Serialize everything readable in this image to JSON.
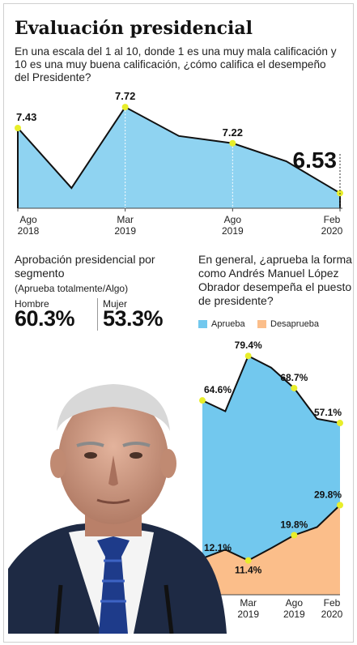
{
  "title": "Evaluación presidencial",
  "subtitle": "En una escala del 1 al 10, donde 1 es una muy mala calificación y 10 es una muy buena calificación, ¿cómo califica el desempeño del Presidente?",
  "colors": {
    "line_fill": "#8fd3f1",
    "approve": "#72c8ee",
    "disapprove": "#fbbe8a",
    "marker": "#e8ee2a"
  },
  "segment": {
    "title": "Aprobación presidencial por segmento",
    "subtitle": "(Aprueba totalmente/Algo)",
    "hombre_label": "Hombre",
    "hombre_value": "60.3%",
    "mujer_label": "Mujer",
    "mujer_value": "53.3%"
  },
  "approval_question": "En general, ¿aprueba la forma como Andrés Manuel López Obrador desempeña el puesto de presidente?",
  "legend": {
    "approve": "Aprueba",
    "disapprove": "Desaprueba"
  },
  "chart_data": [
    {
      "type": "area",
      "title": "Evaluación presidencial",
      "x": [
        "Ago 2018",
        "Nov 2018",
        "Mar 2019",
        "May 2019",
        "Ago 2019",
        "Nov 2019",
        "Feb 2020"
      ],
      "values": [
        7.43,
        6.6,
        7.72,
        7.32,
        7.22,
        6.97,
        6.53
      ],
      "point_labels": [
        "7.43",
        "",
        "7.72",
        "",
        "7.22",
        "",
        "6.53"
      ],
      "tick_labels": [
        {
          "month": "Ago",
          "year": "2018"
        },
        {
          "month": "Mar",
          "year": "2019"
        },
        {
          "month": "Ago",
          "year": "2019"
        },
        {
          "month": "Feb",
          "year": "2020"
        }
      ],
      "ylim": [
        6.5,
        7.8
      ]
    },
    {
      "type": "area",
      "x": [
        "Ago 2018",
        "Nov 2018",
        "Mar 2019",
        "May 2019",
        "Ago 2019",
        "Nov 2019",
        "Feb 2020"
      ],
      "series": [
        {
          "name": "Aprueba",
          "values": [
            64.6,
            61.0,
            79.4,
            75.5,
            68.7,
            58.5,
            57.1
          ],
          "labels": [
            "64.6%",
            "",
            "79.4%",
            "",
            "68.7%",
            "",
            "57.1%"
          ]
        },
        {
          "name": "Desaprueba",
          "values": [
            12.1,
            15.0,
            11.4,
            15.5,
            19.8,
            22.5,
            29.8
          ],
          "labels": [
            "12.1%",
            "",
            "11.4%",
            "",
            "19.8%",
            "",
            "29.8%"
          ]
        }
      ],
      "tick_labels": [
        {
          "month": "Mar",
          "year": "2019"
        },
        {
          "month": "Ago",
          "year": "2019"
        },
        {
          "month": "Feb",
          "year": "2020"
        }
      ],
      "ylim": [
        0,
        85
      ]
    }
  ]
}
